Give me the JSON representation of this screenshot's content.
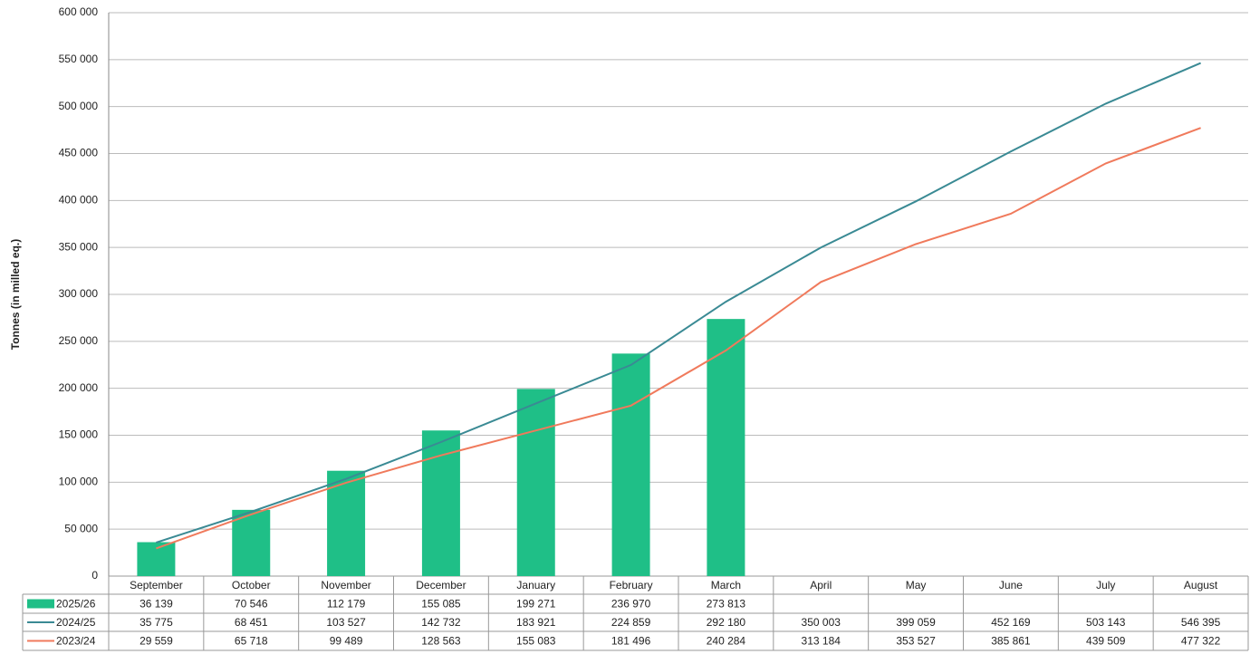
{
  "chart_data": {
    "type": "bar",
    "ylabel": "Tonnes (in milled eq.)",
    "categories": [
      "September",
      "October",
      "November",
      "December",
      "January",
      "February",
      "March",
      "April",
      "May",
      "June",
      "July",
      "August"
    ],
    "series": [
      {
        "name": "2025/26",
        "type": "bar",
        "color": "#1fbf87",
        "values": [
          36139,
          70546,
          112179,
          155085,
          199271,
          236970,
          273813,
          null,
          null,
          null,
          null,
          null
        ],
        "value_labels": [
          "36 139",
          "70 546",
          "112 179",
          "155 085",
          "199 271",
          "236 970",
          "273 813",
          null,
          null,
          null,
          null,
          null
        ]
      },
      {
        "name": "2024/25",
        "type": "line",
        "color": "#3a8a94",
        "values": [
          35775,
          68451,
          103527,
          142732,
          183921,
          224859,
          292180,
          350003,
          399059,
          452169,
          503143,
          546395
        ],
        "value_labels": [
          "35 775",
          "68 451",
          "103 527",
          "142 732",
          "183 921",
          "224 859",
          "292 180",
          "350 003",
          "399 059",
          "452 169",
          "503 143",
          "546 395"
        ]
      },
      {
        "name": "2023/24",
        "type": "line",
        "color": "#f07a5c",
        "values": [
          29559,
          65718,
          99489,
          128563,
          155083,
          181496,
          240284,
          313184,
          353527,
          385861,
          439509,
          477322
        ],
        "value_labels": [
          "29 559",
          "65 718",
          "99 489",
          "128 563",
          "155 083",
          "181 496",
          "240 284",
          "313 184",
          "353 527",
          "385 861",
          "439 509",
          "477 322"
        ]
      }
    ],
    "ylim": [
      0,
      600000
    ],
    "yticks": [
      0,
      {
        "value": 50000,
        "label": "50 000"
      },
      {
        "value": 100000,
        "label": "100 000"
      },
      {
        "value": 150000,
        "label": "150 000"
      },
      {
        "value": 200000,
        "label": "200 000"
      },
      {
        "value": 250000,
        "label": "250 000"
      },
      {
        "value": 300000,
        "label": "300 000"
      },
      {
        "value": 350000,
        "label": "350 000"
      },
      {
        "value": 400000,
        "label": "400 000"
      },
      {
        "value": 450000,
        "label": "450 000"
      },
      {
        "value": 500000,
        "label": "500 000"
      },
      {
        "value": 550000,
        "label": "550 000"
      },
      {
        "value": 600000,
        "label": "600 000"
      }
    ],
    "grid": true
  }
}
